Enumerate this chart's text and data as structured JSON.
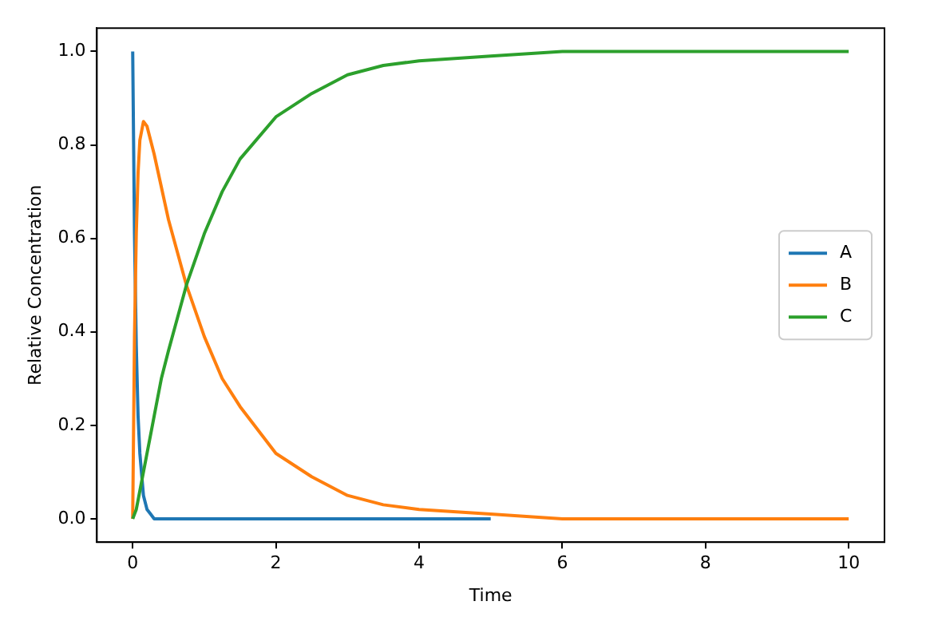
{
  "chart_data": {
    "type": "line",
    "xlabel": "Time",
    "ylabel": "Relative Concentration",
    "x": [
      0,
      0.025,
      0.05,
      0.075,
      0.1,
      0.15,
      0.2,
      0.25,
      0.3,
      0.4,
      0.5,
      0.75,
      1,
      1.25,
      1.5,
      2,
      2.5,
      3,
      3.5,
      4,
      5,
      6,
      7,
      8,
      10
    ],
    "series": [
      {
        "name": "A",
        "color": "#1f77b4",
        "values": [
          1,
          0.61,
          0.37,
          0.22,
          0.14,
          0.05,
          0.02,
          0.01,
          0,
          0,
          0,
          0,
          0,
          0,
          0,
          0,
          0,
          0,
          0,
          0,
          0,
          null,
          null,
          null,
          null
        ]
      },
      {
        "name": "B",
        "color": "#ff7f0e",
        "values": [
          0,
          0.39,
          0.61,
          0.74,
          0.81,
          0.85,
          0.84,
          0.81,
          0.78,
          0.71,
          0.64,
          0.5,
          0.39,
          0.3,
          0.24,
          0.14,
          0.09,
          0.05,
          0.03,
          0.02,
          0.01,
          0,
          0,
          0,
          0
        ]
      },
      {
        "name": "C",
        "color": "#2ca02c",
        "values": [
          0,
          0.01,
          0.02,
          0.04,
          0.06,
          0.1,
          0.14,
          0.18,
          0.22,
          0.3,
          0.36,
          0.5,
          0.61,
          0.7,
          0.77,
          0.86,
          0.91,
          0.95,
          0.97,
          0.98,
          0.99,
          1,
          1,
          1,
          1
        ]
      }
    ],
    "xlim": [
      -0.5,
      10.5
    ],
    "xticks": [
      0,
      2,
      4,
      6,
      8,
      10
    ],
    "ylim": [
      -0.05,
      1.05
    ],
    "yticks": [
      {
        "value": 0,
        "label": "0.0"
      },
      {
        "value": 0.2,
        "label": "0.2"
      },
      {
        "value": 0.4,
        "label": "0.4"
      },
      {
        "value": 0.6,
        "label": "0.6"
      },
      {
        "value": 0.8,
        "label": "0.8"
      },
      {
        "value": 1,
        "label": "1.0"
      }
    ],
    "legend": "center right",
    "grid": false,
    "marker": "none",
    "line_style": "solid"
  }
}
